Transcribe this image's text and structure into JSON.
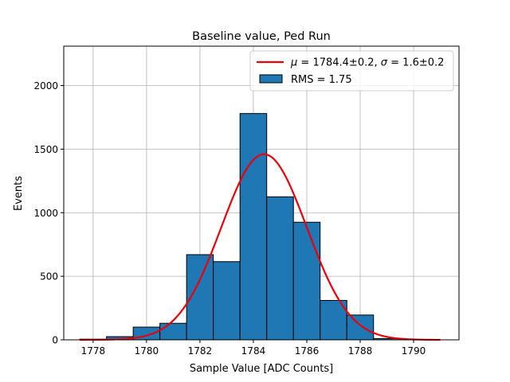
{
  "chart_data": {
    "type": "bar",
    "title": "Baseline value, Ped Run",
    "xlabel": "Sample Value [ADC Counts]",
    "ylabel": "Events",
    "xlim": [
      1776.9,
      1791.7
    ],
    "ylim": [
      0,
      2310
    ],
    "grid": true,
    "legend_position": "top-right",
    "x_ticks": [
      1778,
      1780,
      1782,
      1784,
      1786,
      1788,
      1790
    ],
    "y_ticks": [
      0,
      500,
      1000,
      1500,
      2000
    ],
    "histogram": {
      "name": "RMS = 1.75",
      "color": "#1f77b4",
      "edge_color": "#000000",
      "bin_edges": [
        1777.5,
        1778.5,
        1779.5,
        1780.5,
        1781.5,
        1782.5,
        1783.5,
        1784.5,
        1785.5,
        1786.5,
        1787.5,
        1788.5,
        1789.5
      ],
      "counts": [
        5,
        25,
        100,
        130,
        670,
        615,
        1780,
        1125,
        925,
        310,
        195,
        10
      ]
    },
    "fit": {
      "name_html": "<tspan font-style='italic'>μ</tspan> = 1784.4±0.2, <tspan font-style='italic'>σ</tspan> = 1.6±0.2",
      "type": "gaussian",
      "mu": 1784.4,
      "sigma": 1.6,
      "amplitude": 1460,
      "x_range": [
        1777.5,
        1791
      ],
      "color": "#e8000b"
    },
    "legend": [
      {
        "label_key": "fit",
        "text": "μ = 1784.4±0.2, σ = 1.6±0.2"
      },
      {
        "label_key": "histogram",
        "text": "RMS = 1.75"
      }
    ]
  }
}
